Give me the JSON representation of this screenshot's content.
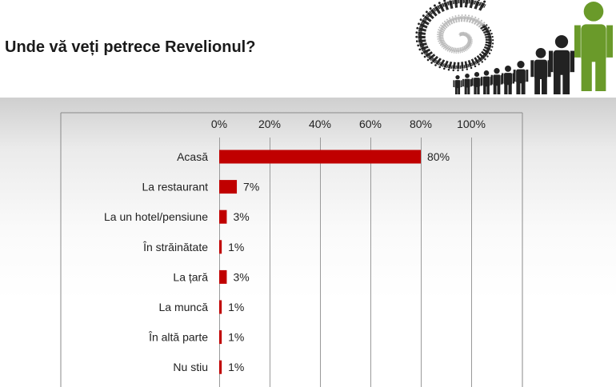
{
  "header": {
    "title": "Unde vă veți petrece Revelionul?"
  },
  "logo": {
    "icon": "people-spiral-logo-icon",
    "colors": {
      "dark": "#222222",
      "light": "#bbbbbb",
      "accent": "#6a9a2a"
    }
  },
  "chart_data": {
    "type": "bar",
    "orientation": "horizontal",
    "categories": [
      "Acasă",
      "La restaurant",
      "La un hotel/pensiune",
      "În străinătate",
      "La țară",
      "La muncă",
      "În altă parte",
      "Nu stiu"
    ],
    "values": [
      80,
      7,
      3,
      1,
      3,
      1,
      1,
      1
    ],
    "value_labels": [
      "80%",
      "7%",
      "3%",
      "1%",
      "3%",
      "1%",
      "1%",
      "1%"
    ],
    "xlim": [
      0,
      100
    ],
    "xticks": [
      0,
      20,
      40,
      60,
      80,
      100
    ],
    "xtick_labels": [
      "0%",
      "20%",
      "40%",
      "60%",
      "80%",
      "100%"
    ],
    "xaxis_position": "top",
    "grid": true,
    "legend": "none",
    "bar_color": "#c00000"
  }
}
